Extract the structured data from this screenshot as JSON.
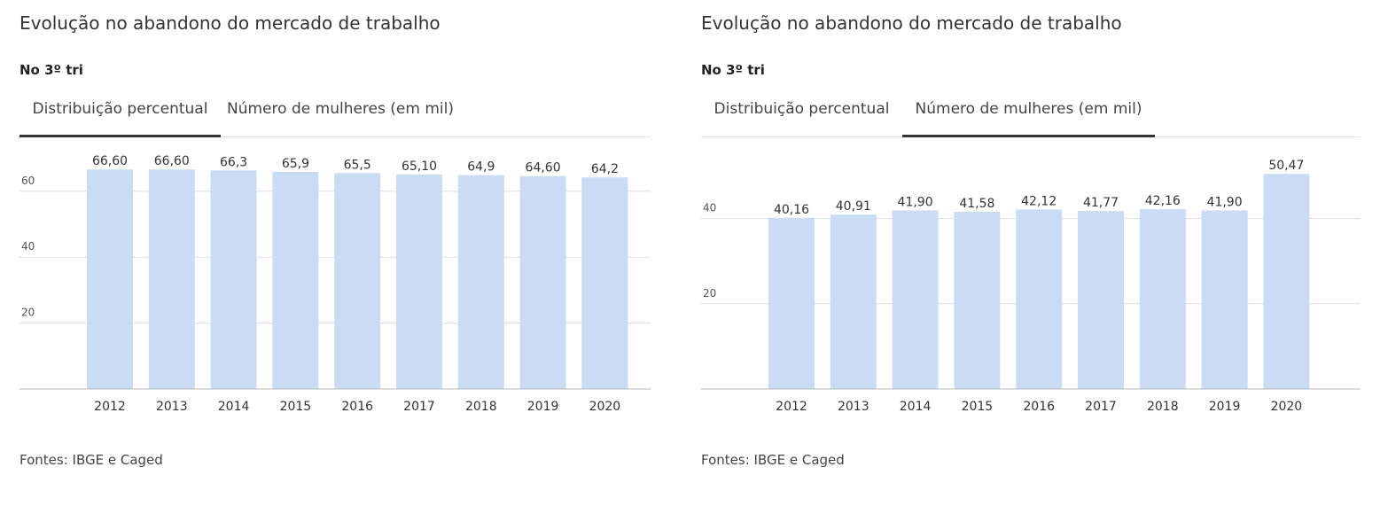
{
  "source": "Fontes: IBGE e Caged",
  "panels": [
    {
      "title": "Evolução no abandono do mercado de trabalho",
      "subtitle": "No 3º tri",
      "tabs": [
        {
          "label": "Distribuição percentual",
          "active": true
        },
        {
          "label": "Número de mulheres (em mil)",
          "active": false
        }
      ]
    },
    {
      "title": "Evolução no abandono do mercado de trabalho",
      "subtitle": "No 3º tri",
      "tabs": [
        {
          "label": "Distribuição percentual",
          "active": false
        },
        {
          "label": "Número de mulheres (em mil)",
          "active": true
        }
      ]
    }
  ],
  "colors": {
    "bar": "#c9dcf3",
    "grid": "#dddddd",
    "axis": "#bbbbbb",
    "text": "#333333",
    "tick": "#555555"
  },
  "chart_data": [
    {
      "type": "bar",
      "title": "",
      "xlabel": "",
      "ylabel": "",
      "categories": [
        "2012",
        "2013",
        "2014",
        "2015",
        "2016",
        "2017",
        "2018",
        "2019",
        "2020"
      ],
      "values": [
        66.6,
        66.6,
        66.3,
        65.9,
        65.5,
        65.1,
        64.9,
        64.6,
        64.2
      ],
      "labels": [
        "66,60",
        "66,60",
        "66,3",
        "65,9",
        "65,5",
        "65,10",
        "64,9",
        "64,60",
        "64,2"
      ],
      "ylim": [
        0,
        75
      ],
      "yticks": [
        20,
        40,
        60
      ],
      "grid": true
    },
    {
      "type": "bar",
      "title": "",
      "xlabel": "",
      "ylabel": "",
      "categories": [
        "2012",
        "2013",
        "2014",
        "2015",
        "2016",
        "2017",
        "2018",
        "2019",
        "2020"
      ],
      "values": [
        40.16,
        40.91,
        41.9,
        41.58,
        42.12,
        41.77,
        42.16,
        41.9,
        50.47
      ],
      "labels": [
        "40,16",
        "40,91",
        "41,90",
        "41,58",
        "42,12",
        "41,77",
        "42,16",
        "41,90",
        "50,47"
      ],
      "ylim": [
        0,
        58
      ],
      "yticks": [
        20,
        40
      ],
      "grid": true
    }
  ]
}
